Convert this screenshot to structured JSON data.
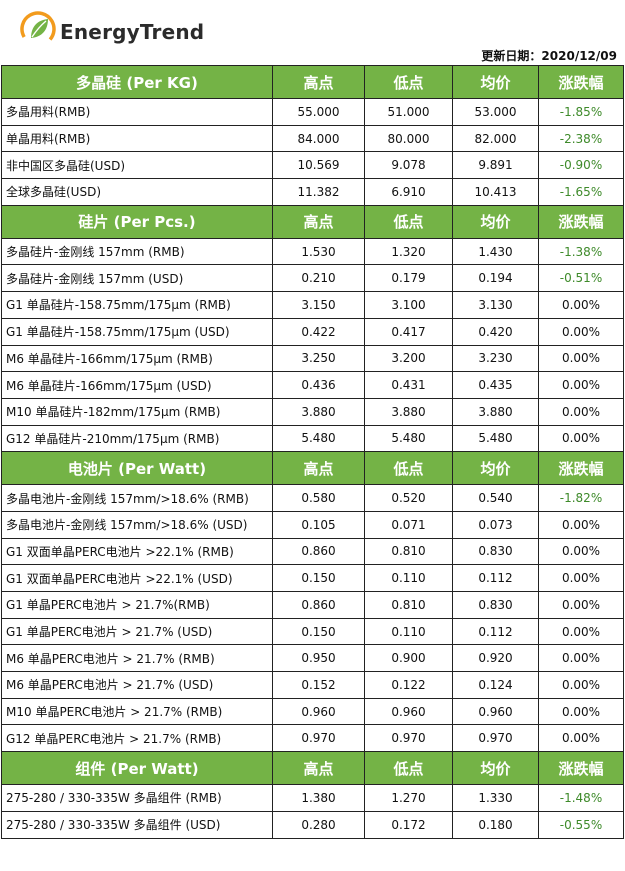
{
  "brand": {
    "name": "EnergyTrend",
    "logo_icon": "leaf-circle-logo",
    "colors": {
      "green": "#74b346",
      "orange": "#f29b1d"
    }
  },
  "update_date": "更新日期：2020/12/09",
  "sections": [
    {
      "title": "多晶硅 (Per KG)",
      "headers": [
        "高点",
        "低点",
        "均价",
        "涨跌幅"
      ],
      "rows": [
        {
          "name": "多晶用料(RMB)",
          "high": "55.000",
          "low": "51.000",
          "avg": "53.000",
          "change": "-1.85%"
        },
        {
          "name": "单晶用料(RMB)",
          "high": "84.000",
          "low": "80.000",
          "avg": "82.000",
          "change": "-2.38%"
        },
        {
          "name": "非中国区多晶硅(USD)",
          "high": "10.569",
          "low": "9.078",
          "avg": "9.891",
          "change": "-0.90%"
        },
        {
          "name": "全球多晶硅(USD)",
          "high": "11.382",
          "low": "6.910",
          "avg": "10.413",
          "change": "-1.65%"
        }
      ]
    },
    {
      "title": "硅片 (Per Pcs.)",
      "headers": [
        "高点",
        "低点",
        "均价",
        "涨跌幅"
      ],
      "rows": [
        {
          "name": "多晶硅片-金刚线 157mm (RMB)",
          "high": "1.530",
          "low": "1.320",
          "avg": "1.430",
          "change": "-1.38%"
        },
        {
          "name": "多晶硅片-金刚线 157mm (USD)",
          "high": "0.210",
          "low": "0.179",
          "avg": "0.194",
          "change": "-0.51%"
        },
        {
          "name": "G1 单晶硅片-158.75mm/175μm (RMB)",
          "high": "3.150",
          "low": "3.100",
          "avg": "3.130",
          "change": "0.00%"
        },
        {
          "name": "G1 单晶硅片-158.75mm/175μm (USD)",
          "high": "0.422",
          "low": "0.417",
          "avg": "0.420",
          "change": "0.00%"
        },
        {
          "name": "M6 单晶硅片-166mm/175μm (RMB)",
          "high": "3.250",
          "low": "3.200",
          "avg": "3.230",
          "change": "0.00%"
        },
        {
          "name": "M6 单晶硅片-166mm/175μm (USD)",
          "high": "0.436",
          "low": "0.431",
          "avg": "0.435",
          "change": "0.00%"
        },
        {
          "name": "M10 单晶硅片-182mm/175μm (RMB)",
          "high": "3.880",
          "low": "3.880",
          "avg": "3.880",
          "change": "0.00%"
        },
        {
          "name": "G12 单晶硅片-210mm/175μm  (RMB)",
          "high": "5.480",
          "low": "5.480",
          "avg": "5.480",
          "change": "0.00%"
        }
      ]
    },
    {
      "title": "电池片 (Per Watt)",
      "headers": [
        "高点",
        "低点",
        "均价",
        "涨跌幅"
      ],
      "rows": [
        {
          "name": "多晶电池片-金刚线 157mm/>18.6% (RMB)",
          "high": "0.580",
          "low": "0.520",
          "avg": "0.540",
          "change": "-1.82%"
        },
        {
          "name": "多晶电池片-金刚线 157mm/>18.6% (USD)",
          "high": "0.105",
          "low": "0.071",
          "avg": "0.073",
          "change": "0.00%"
        },
        {
          "name": "G1 双面单晶PERC电池片  >22.1% (RMB)",
          "high": "0.860",
          "low": "0.810",
          "avg": "0.830",
          "change": "0.00%"
        },
        {
          "name": "G1 双面单晶PERC电池片  >22.1% (USD)",
          "high": "0.150",
          "low": "0.110",
          "avg": "0.112",
          "change": "0.00%"
        },
        {
          "name": "G1 单晶PERC电池片  > 21.7%(RMB)",
          "high": "0.860",
          "low": "0.810",
          "avg": "0.830",
          "change": "0.00%"
        },
        {
          "name": "G1 单晶PERC电池片  > 21.7%  (USD)",
          "high": "0.150",
          "low": "0.110",
          "avg": "0.112",
          "change": "0.00%"
        },
        {
          "name": "M6 单晶PERC电池片  > 21.7% (RMB)",
          "high": "0.950",
          "low": "0.900",
          "avg": "0.920",
          "change": "0.00%"
        },
        {
          "name": "M6 单晶PERC电池片  > 21.7% (USD)",
          "high": "0.152",
          "low": "0.122",
          "avg": "0.124",
          "change": "0.00%"
        },
        {
          "name": "M10 单晶PERC电池片  > 21.7% (RMB)",
          "high": "0.960",
          "low": "0.960",
          "avg": "0.960",
          "change": "0.00%"
        },
        {
          "name": "G12 单晶PERC电池片  > 21.7% (RMB)",
          "high": "0.970",
          "low": "0.970",
          "avg": "0.970",
          "change": "0.00%"
        }
      ]
    },
    {
      "title": "组件 (Per Watt)",
      "headers": [
        "高点",
        "低点",
        "均价",
        "涨跌幅"
      ],
      "rows": [
        {
          "name": "275-280 / 330-335W 多晶组件 (RMB)",
          "high": "1.380",
          "low": "1.270",
          "avg": "1.330",
          "change": "-1.48%"
        },
        {
          "name": "275-280 / 330-335W 多晶组件 (USD)",
          "high": "0.280",
          "low": "0.172",
          "avg": "0.180",
          "change": "-0.55%"
        }
      ]
    }
  ]
}
